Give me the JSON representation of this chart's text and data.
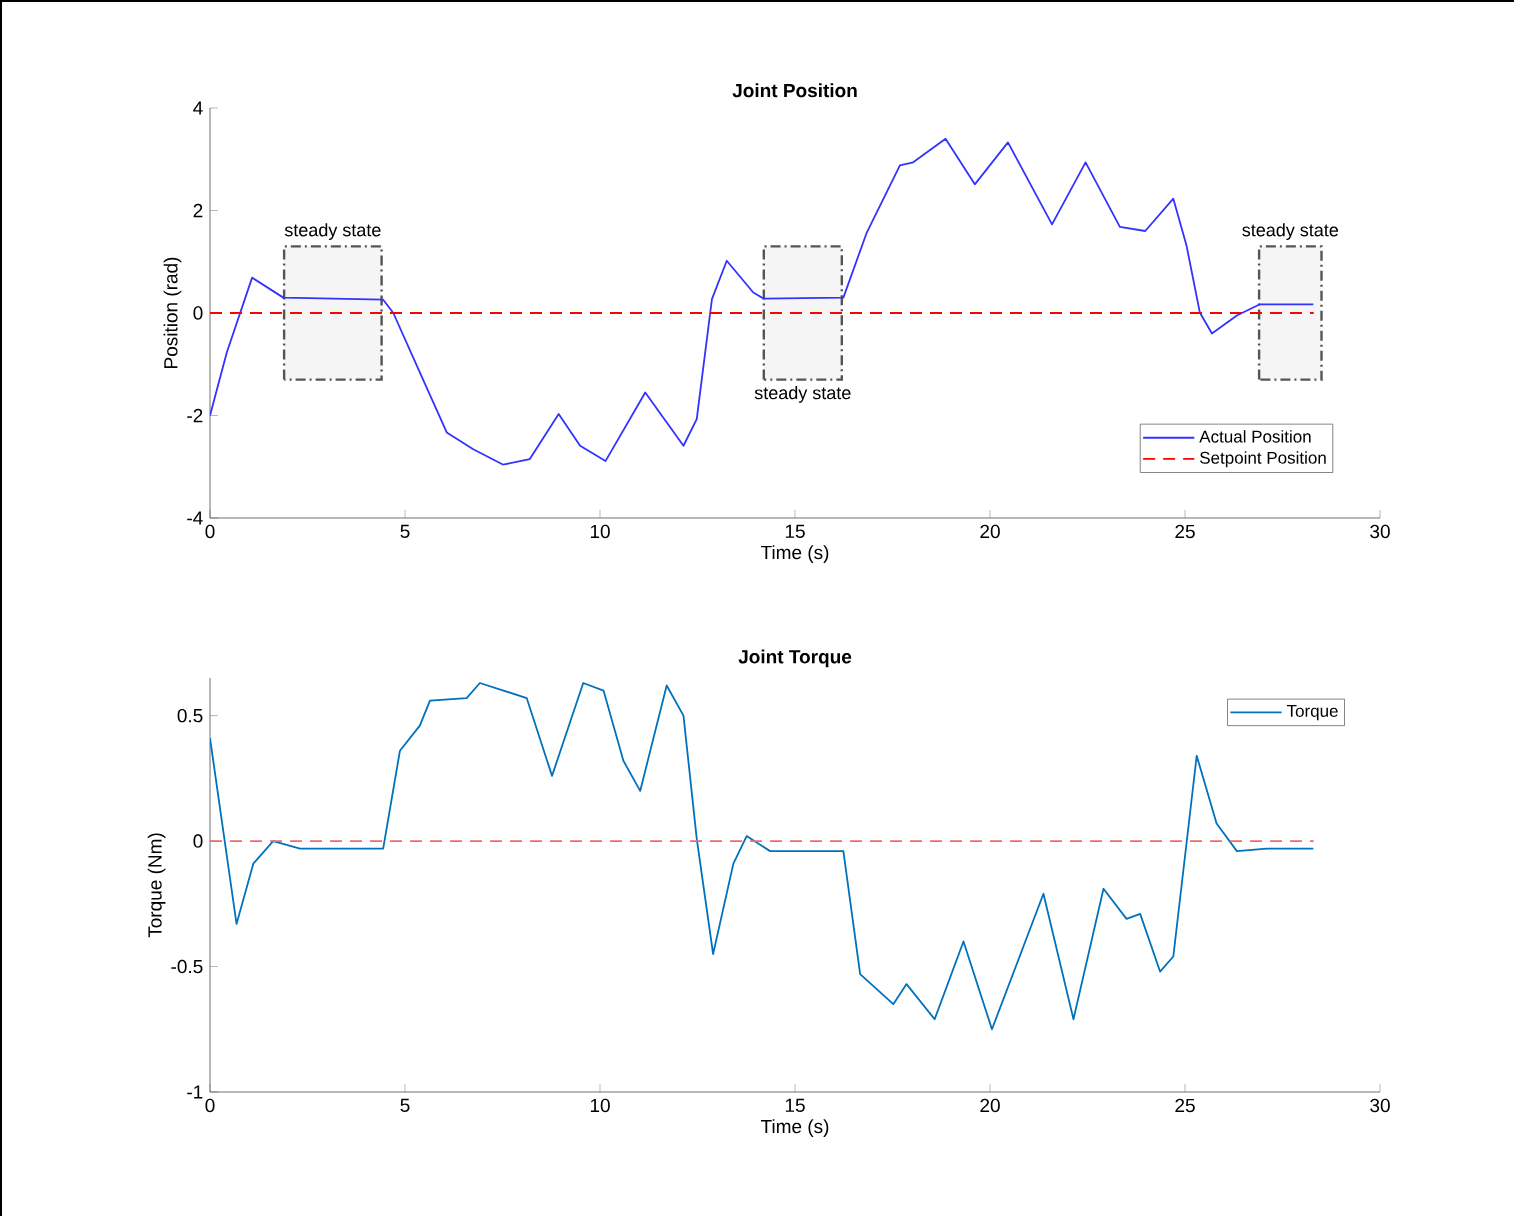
{
  "chart_data": [
    {
      "type": "line",
      "title": "Joint Position",
      "xlabel": "Time (s)",
      "ylabel": "Position (rad)",
      "xlim": [
        0,
        30
      ],
      "ylim": [
        -4,
        4
      ],
      "xticks": [
        0,
        5,
        10,
        15,
        20,
        25,
        30
      ],
      "yticks": [
        -4,
        -2,
        0,
        2,
        4
      ],
      "grid": false,
      "legend": "bottom right",
      "marker": "none",
      "series": [
        {
          "name": "Actual Position",
          "color": "#3333ff",
          "line_style": "solid",
          "x": [
            0,
            0.43,
            1.08,
            1.88,
            4.44,
            4.7,
            5.38,
            6.07,
            6.75,
            7.52,
            8.2,
            8.94,
            9.49,
            10.14,
            11.16,
            12.14,
            12.48,
            12.87,
            13.25,
            13.93,
            14.2,
            16.24,
            16.84,
            17.69,
            18.03,
            18.86,
            19.61,
            20.46,
            21.59,
            22.45,
            23.33,
            23.98,
            24.7,
            25.04,
            25.38,
            25.69,
            26.33,
            26.92,
            28.29
          ],
          "values": [
            -2,
            -0.77,
            0.69,
            0.3,
            0.26,
            0,
            -1.16,
            -2.33,
            -2.66,
            -2.96,
            -2.85,
            -1.97,
            -2.59,
            -2.89,
            -1.55,
            -2.59,
            -2.07,
            0.27,
            1.02,
            0.4,
            0.28,
            0.3,
            1.57,
            2.88,
            2.94,
            3.4,
            2.51,
            3.33,
            1.73,
            2.94,
            1.68,
            1.6,
            2.23,
            1.31,
            0.01,
            -0.4,
            -0.05,
            0.17,
            0.17
          ]
        },
        {
          "name": "Setpoint Position",
          "color": "#ff0000",
          "line_style": "dashed",
          "x": [
            0,
            28.3
          ],
          "values": [
            0,
            0
          ]
        }
      ],
      "bands": [
        {
          "axis": "x",
          "from": 1.9,
          "to": 4.4,
          "color": "#555555",
          "label": "steady state"
        },
        {
          "axis": "x",
          "from": 14.2,
          "to": 16.2,
          "color": "#555555",
          "label": "steady state"
        },
        {
          "axis": "x",
          "from": 26.9,
          "to": 28.5,
          "color": "#555555",
          "label": "steady state"
        }
      ]
    },
    {
      "type": "line",
      "title": "Joint Torque",
      "xlabel": "Time (s)",
      "ylabel": "Torque (Nm)",
      "xlim": [
        0,
        30
      ],
      "ylim": [
        -1,
        0.65
      ],
      "xticks": [
        0,
        5,
        10,
        15,
        20,
        25,
        30
      ],
      "yticks": [
        -1,
        -0.5,
        0,
        0.5
      ],
      "grid": false,
      "legend": "top right",
      "marker": "none",
      "series": [
        {
          "name": "Torque",
          "color": "#0072bd",
          "line_style": "solid",
          "x": [
            0,
            0.68,
            1.11,
            1.62,
            2.31,
            4.44,
            4.87,
            5.38,
            5.64,
            6.58,
            6.92,
            8.12,
            8.77,
            9.57,
            10.09,
            10.6,
            11.03,
            11.71,
            12.14,
            12.48,
            12.9,
            13.42,
            13.76,
            14.36,
            16.24,
            16.67,
            17.52,
            17.86,
            18.58,
            19.32,
            20.05,
            21.37,
            22.14,
            22.91,
            23.5,
            23.85,
            24.36,
            24.7,
            25.3,
            25.81,
            26.33,
            27.1,
            28.29
          ],
          "values": [
            0.41,
            -0.33,
            -0.09,
            0,
            -0.03,
            -0.03,
            0.36,
            0.46,
            0.56,
            0.57,
            0.63,
            0.57,
            0.26,
            0.63,
            0.6,
            0.32,
            0.2,
            0.62,
            0.5,
            0.01,
            -0.45,
            -0.09,
            0.02,
            -0.04,
            -0.04,
            -0.53,
            -0.65,
            -0.57,
            -0.71,
            -0.4,
            -0.75,
            -0.21,
            -0.71,
            -0.19,
            -0.31,
            -0.29,
            -0.52,
            -0.46,
            0.34,
            0.07,
            -0.04,
            -0.03,
            -0.03
          ]
        },
        {
          "color": "#f26b6b",
          "line_style": "dashed",
          "x": [
            0,
            28.3
          ],
          "values": [
            0,
            0
          ]
        }
      ]
    }
  ]
}
